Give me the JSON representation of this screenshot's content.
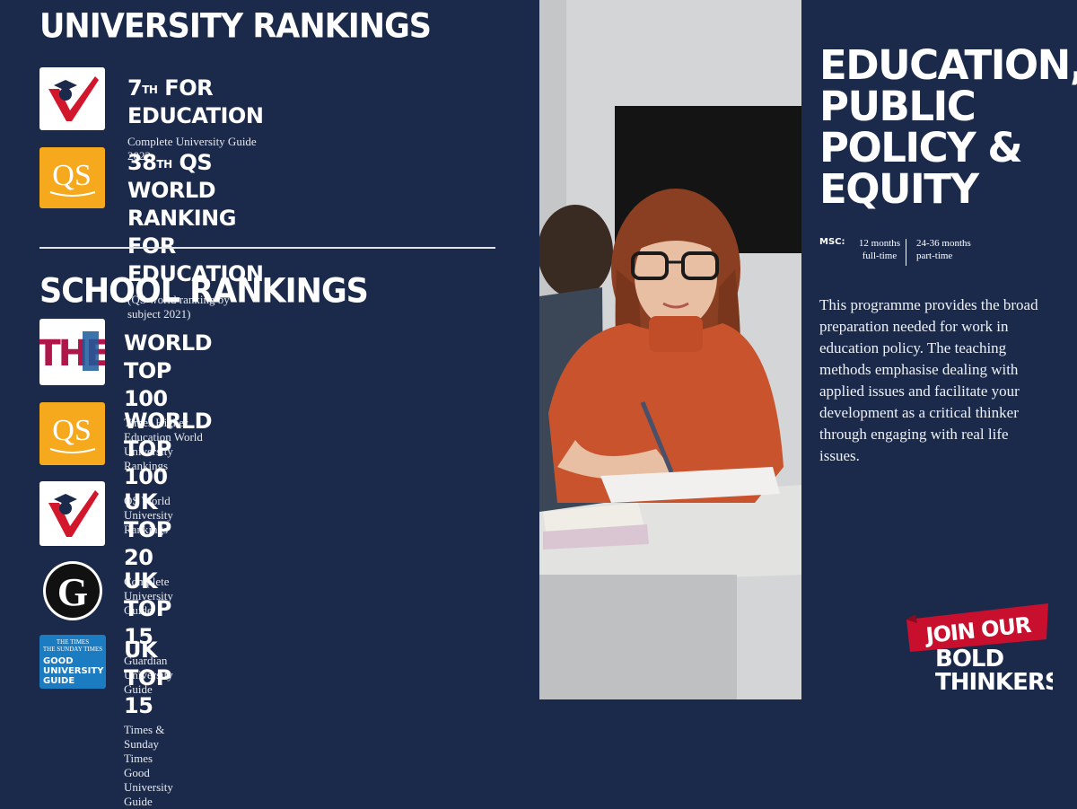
{
  "university_rankings": {
    "heading": "UNIVERSITY RANKINGS",
    "items": [
      {
        "rank": "7",
        "suffix": "TH",
        "title_rest": " FOR EDUCATION",
        "source": "Complete University Guide 2022",
        "logo": "complete-university-guide-logo"
      },
      {
        "rank": "38",
        "suffix": "TH",
        "title_rest": " QS WORLD RANKING",
        "title_line2": "FOR EDUCATION",
        "source": "(QS world ranking by subject 2021)",
        "logo": "qs-logo",
        "logo_text": "QS"
      }
    ]
  },
  "school_rankings": {
    "heading": "SCHOOL RANKINGS",
    "items": [
      {
        "title": "WORLD TOP 100",
        "source": "Times Higher Education World University Rankings",
        "logo": "the-logo",
        "logo_text": "THE"
      },
      {
        "title": "WORLD TOP 100",
        "source": "QS World University Rankings",
        "logo": "qs-logo",
        "logo_text": "QS"
      },
      {
        "title": "UK TOP 20",
        "source": "Complete University Guide",
        "logo": "complete-university-guide-logo"
      },
      {
        "title": "UK TOP 15",
        "source": "Guardian University Guide",
        "logo": "guardian-logo",
        "logo_text": "G"
      },
      {
        "title": "UK TOP 15",
        "source": "Times & Sunday Times Good University Guide",
        "logo": "times-good-university-guide-logo",
        "logo_lines": [
          "THE TIMES",
          "THE SUNDAY TIMES",
          "GOOD",
          "UNIVERSITY",
          "GUIDE"
        ]
      }
    ]
  },
  "programme": {
    "title_lines": [
      "EDUCATION,",
      "PUBLIC",
      "POLICY &",
      "EQUITY"
    ],
    "msc_label": "MSC:",
    "duration_1_line1": "12 months",
    "duration_1_line2": "full-time",
    "duration_2_line1": "24-36 months",
    "duration_2_line2": "part-time",
    "description": "This programme provides the broad preparation needed for work in education policy. The teaching methods emphasise dealing with applied issues and facilitate your development as a critical thinker through engaging with real life issues."
  },
  "badge": {
    "line1": "JOIN OUR",
    "line2": "BOLD",
    "line3": "THINKERS"
  },
  "colors": {
    "navy": "#1b2a4a",
    "qs_orange": "#f6a91d",
    "cug_red": "#d2162c",
    "badge_red": "#c8102e",
    "times_blue": "#1c7cc2"
  }
}
